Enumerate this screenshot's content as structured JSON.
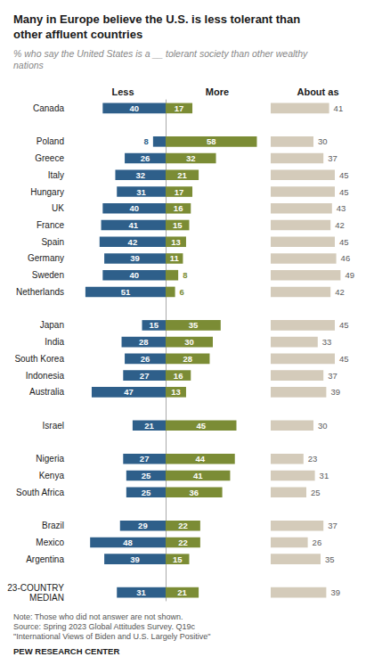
{
  "chart_data": {
    "type": "bar",
    "orientation": "horizontal",
    "title": "Many in Europe believe the U.S. is less tolerant than\nother affluent countries",
    "subtitle": "% who say the United States is a __ tolerant society than other wealthy\nnations",
    "categories": [
      "Canada",
      null,
      "Poland",
      "Greece",
      "Italy",
      "Hungary",
      "UK",
      "France",
      "Spain",
      "Germany",
      "Sweden",
      "Netherlands",
      null,
      "Japan",
      "India",
      "South Korea",
      "Indonesia",
      "Australia",
      null,
      "Israel",
      null,
      "Nigeria",
      "Kenya",
      "South Africa",
      null,
      "Brazil",
      "Mexico",
      "Argentina",
      null,
      "23-COUNTRY\nMEDIAN"
    ],
    "series": [
      {
        "name": "Less",
        "color": "#2E5F8A",
        "values": [
          40,
          null,
          8,
          26,
          32,
          31,
          40,
          41,
          42,
          39,
          40,
          51,
          null,
          15,
          28,
          26,
          27,
          47,
          null,
          21,
          null,
          27,
          25,
          25,
          null,
          29,
          48,
          39,
          null,
          31
        ]
      },
      {
        "name": "More",
        "color": "#7B8C35",
        "values": [
          17,
          null,
          58,
          32,
          21,
          17,
          16,
          15,
          13,
          11,
          8,
          6,
          null,
          35,
          30,
          28,
          16,
          13,
          null,
          45,
          null,
          44,
          41,
          36,
          null,
          22,
          22,
          15,
          null,
          21
        ]
      },
      {
        "name": "About as",
        "color": "#D4CBBA",
        "values": [
          41,
          null,
          30,
          37,
          45,
          45,
          43,
          42,
          45,
          46,
          49,
          42,
          null,
          45,
          33,
          45,
          37,
          39,
          null,
          30,
          null,
          23,
          31,
          25,
          null,
          37,
          26,
          35,
          null,
          39
        ]
      }
    ],
    "xlim": [
      0,
      60
    ],
    "grid": false,
    "tick_labels": false,
    "data_labels": true,
    "note": "Note: Those who did not answer are not shown.\nSource: Spring 2023 Global Attitudes Survey. Q19c\n\"International Views of Biden and U.S. Largely Positive\"",
    "footer": "PEW RESEARCH CENTER"
  }
}
